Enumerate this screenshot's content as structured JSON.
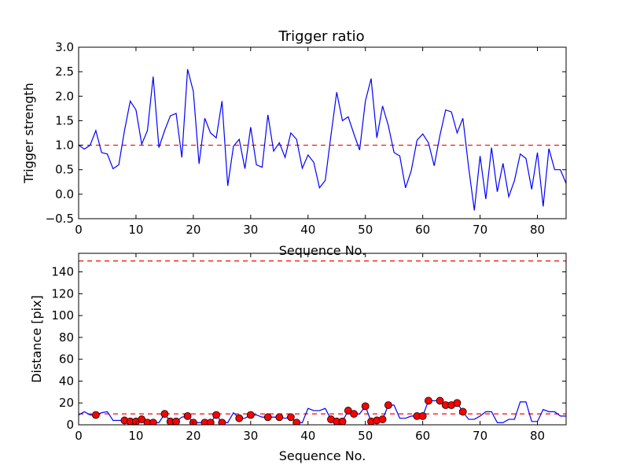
{
  "chart_data": [
    {
      "type": "line",
      "title": "Trigger ratio",
      "xlabel": "Sequence No.",
      "ylabel": "Trigger strength",
      "xlim": [
        0,
        85
      ],
      "ylim": [
        -0.5,
        3.0
      ],
      "xticks": [
        0,
        10,
        20,
        30,
        40,
        50,
        60,
        70,
        80
      ],
      "yticks": [
        -0.5,
        0.0,
        0.5,
        1.0,
        1.5,
        2.0,
        2.5,
        3.0
      ],
      "ytick_labels": [
        "−0.5",
        "0.0",
        "0.5",
        "1.0",
        "1.5",
        "2.0",
        "2.5",
        "3.0"
      ],
      "threshold": 1.0,
      "colors": {
        "line": "#0000ff",
        "threshold": "#ff0000"
      },
      "series": [
        {
          "name": "trigger strength",
          "x": [
            0,
            1,
            2,
            3,
            4,
            5,
            6,
            7,
            8,
            9,
            10,
            11,
            12,
            13,
            14,
            15,
            16,
            17,
            18,
            19,
            20,
            21,
            22,
            23,
            24,
            25,
            26,
            27,
            28,
            29,
            30,
            31,
            32,
            33,
            34,
            35,
            36,
            37,
            38,
            39,
            40,
            41,
            42,
            43,
            44,
            45,
            46,
            47,
            48,
            49,
            50,
            51,
            52,
            53,
            54,
            55,
            56,
            57,
            58,
            59,
            60,
            61,
            62,
            63,
            64,
            65,
            66,
            67,
            68,
            69,
            70,
            71,
            72,
            73,
            74,
            75,
            76,
            77,
            78,
            79,
            80,
            81,
            82,
            83,
            84,
            85
          ],
          "y": [
            1.0,
            0.92,
            1.0,
            1.3,
            0.85,
            0.82,
            0.52,
            0.6,
            1.3,
            1.9,
            1.72,
            1.02,
            1.3,
            2.4,
            0.95,
            1.3,
            1.6,
            1.65,
            0.75,
            2.55,
            2.1,
            0.62,
            1.55,
            1.25,
            1.15,
            1.9,
            0.17,
            0.98,
            1.12,
            0.52,
            1.37,
            0.6,
            0.55,
            1.62,
            0.88,
            1.05,
            0.75,
            1.25,
            1.12,
            0.53,
            0.8,
            0.65,
            0.13,
            0.28,
            1.2,
            2.08,
            1.5,
            1.58,
            1.23,
            0.9,
            1.9,
            2.36,
            1.15,
            1.8,
            1.4,
            0.85,
            0.78,
            0.13,
            0.48,
            1.1,
            1.23,
            1.05,
            0.58,
            1.2,
            1.72,
            1.68,
            1.25,
            1.55,
            0.55,
            -0.33,
            0.78,
            -0.1,
            0.95,
            0.05,
            0.63,
            -0.05,
            0.28,
            0.82,
            0.73,
            0.1,
            0.85,
            -0.25,
            0.93,
            0.5,
            0.5,
            0.22
          ]
        }
      ]
    },
    {
      "type": "line",
      "title": "",
      "xlabel": "Sequence No.",
      "ylabel": "Distance [pix]",
      "xlim": [
        0,
        85
      ],
      "ylim": [
        0,
        157
      ],
      "xticks": [
        0,
        10,
        20,
        30,
        40,
        50,
        60,
        70,
        80
      ],
      "yticks": [
        0,
        20,
        40,
        60,
        80,
        100,
        120,
        140
      ],
      "thresholds": [
        150,
        10
      ],
      "colors": {
        "line": "#0000ff",
        "threshold": "#ff0000",
        "marker": "#ff0000"
      },
      "series": [
        {
          "name": "distance",
          "x": [
            0,
            1,
            2,
            3,
            4,
            5,
            6,
            7,
            8,
            9,
            10,
            11,
            12,
            13,
            14,
            15,
            16,
            17,
            18,
            19,
            20,
            21,
            22,
            23,
            24,
            25,
            26,
            27,
            28,
            29,
            30,
            31,
            32,
            33,
            34,
            35,
            36,
            37,
            38,
            39,
            40,
            41,
            42,
            43,
            44,
            45,
            46,
            47,
            48,
            49,
            50,
            51,
            52,
            53,
            54,
            55,
            56,
            57,
            58,
            59,
            60,
            61,
            62,
            63,
            64,
            65,
            66,
            67,
            68,
            69,
            70,
            71,
            72,
            73,
            74,
            75,
            76,
            77,
            78,
            79,
            80,
            81,
            82,
            83,
            84,
            85
          ],
          "y": [
            9,
            12,
            9,
            9,
            11,
            12,
            4,
            4,
            4,
            3,
            3,
            5,
            2,
            2,
            2,
            10,
            3,
            3,
            7,
            8,
            2,
            2,
            2,
            2,
            9,
            2,
            2,
            11,
            6,
            6,
            9,
            9,
            7,
            7,
            7,
            7,
            6,
            7,
            2,
            2,
            15,
            13,
            13,
            15,
            5,
            3,
            3,
            13,
            10,
            10,
            17,
            3,
            4,
            5,
            18,
            18,
            6,
            6,
            8,
            8,
            8,
            22,
            22,
            22,
            18,
            18,
            20,
            12,
            5,
            5,
            8,
            12,
            12,
            2,
            2,
            5,
            5,
            21,
            21,
            3,
            3,
            14,
            12,
            12,
            8,
            8
          ]
        },
        {
          "name": "flagged points",
          "x": [
            3,
            8,
            9,
            10,
            11,
            12,
            13,
            15,
            16,
            17,
            19,
            20,
            22,
            23,
            24,
            25,
            28,
            30,
            33,
            35,
            37,
            38,
            44,
            45,
            46,
            47,
            48,
            50,
            51,
            52,
            53,
            54,
            59,
            60,
            61,
            63,
            64,
            65,
            66,
            67
          ],
          "y": [
            9,
            4,
            3,
            3,
            5,
            2,
            2,
            10,
            3,
            3,
            8,
            2,
            2,
            2,
            9,
            2,
            6,
            9,
            7,
            7,
            7,
            2,
            5,
            3,
            3,
            13,
            10,
            17,
            3,
            4,
            5,
            18,
            8,
            8,
            22,
            22,
            18,
            18,
            20,
            12
          ]
        }
      ]
    }
  ]
}
